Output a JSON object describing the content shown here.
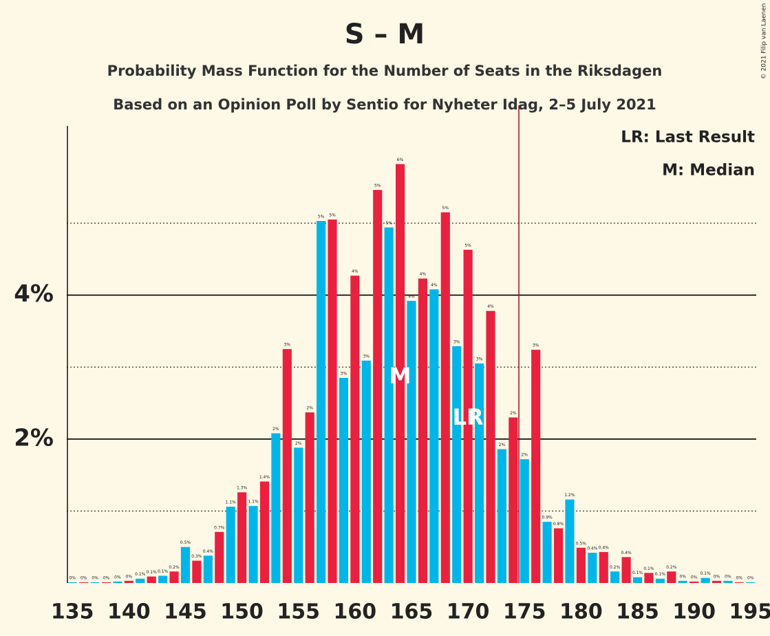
{
  "chart_data": {
    "type": "bar",
    "title": "S – M",
    "subtitle": "Probability Mass Function for the Number of Seats in the Riksdagen",
    "subtitle2": "Based on an Opinion Poll by Sentio for Nyheter Idag, 2–5 July 2021",
    "copyright": "© 2021 Filip van Laenen",
    "legend_texts": [
      "LR: Last Result",
      "M: Median"
    ],
    "x": [
      135,
      136,
      137,
      138,
      139,
      140,
      141,
      142,
      143,
      144,
      145,
      146,
      147,
      148,
      149,
      150,
      151,
      152,
      153,
      154,
      155,
      156,
      157,
      158,
      159,
      160,
      161,
      162,
      163,
      164,
      165,
      166,
      167,
      168,
      169,
      170,
      171,
      172,
      173,
      174,
      175,
      176,
      177,
      178,
      179,
      180,
      181,
      182,
      183,
      184,
      185,
      186,
      187,
      188,
      189,
      190,
      191,
      192,
      193,
      194,
      195
    ],
    "values": [
      0.01,
      0.01,
      0.01,
      0.01,
      0.02,
      0.03,
      0.06,
      0.09,
      0.1,
      0.16,
      0.5,
      0.31,
      0.38,
      0.71,
      1.06,
      1.26,
      1.07,
      1.41,
      2.08,
      3.25,
      1.88,
      2.37,
      5.03,
      5.05,
      2.85,
      4.27,
      3.09,
      5.46,
      4.94,
      5.82,
      3.92,
      4.23,
      4.08,
      5.15,
      3.29,
      4.63,
      3.05,
      3.78,
      1.86,
      2.3,
      1.72,
      3.24,
      0.85,
      0.76,
      1.16,
      0.49,
      0.42,
      0.43,
      0.16,
      0.36,
      0.08,
      0.14,
      0.06,
      0.16,
      0.03,
      0.02,
      0.07,
      0.03,
      0.03,
      0.01,
      0.01
    ],
    "value_labels": [
      "0%",
      "0%",
      "0%",
      "0%",
      "0%",
      "0%",
      "0.1%",
      "0.1%",
      "0.1%",
      "0.2%",
      "0.5%",
      "0.3%",
      "0.4%",
      "0.7%",
      "1.1%",
      "1.3%",
      "1.1%",
      "1.4%",
      "2%",
      "3%",
      "2%",
      "2%",
      "5%",
      "5%",
      "3%",
      "4%",
      "3%",
      "5%",
      "5%",
      "6%",
      "4%",
      "4%",
      "4%",
      "5%",
      "3%",
      "5%",
      "3%",
      "4%",
      "2%",
      "2%",
      "2%",
      "3%",
      "0.9%",
      "0.8%",
      "1.2%",
      "0.5%",
      "0.4%",
      "0.4%",
      "0.2%",
      "0.4%",
      "0.1%",
      "0.1%",
      "0.1%",
      "0.2%",
      "0%",
      "0%",
      "0.1%",
      "0%",
      "0%",
      "0%",
      "0%"
    ],
    "colors": [
      "#00b6e8",
      "#e8213f"
    ],
    "xlim": [
      134.5,
      195.5
    ],
    "xticks": [
      135,
      140,
      145,
      150,
      155,
      160,
      165,
      170,
      175,
      180,
      185,
      190,
      195
    ],
    "ylim": [
      0,
      6.35
    ],
    "yticks": [
      {
        "value": 2,
        "label": "2%"
      },
      {
        "value": 4,
        "label": "4%"
      }
    ],
    "minor_gridlines": [
      1,
      3,
      5
    ],
    "median": {
      "label": "M",
      "x": 164
    },
    "last_result": {
      "label": "LR",
      "x": 170
    },
    "last_result_line": 174.5,
    "last_result_line_color": "#c0001a"
  }
}
